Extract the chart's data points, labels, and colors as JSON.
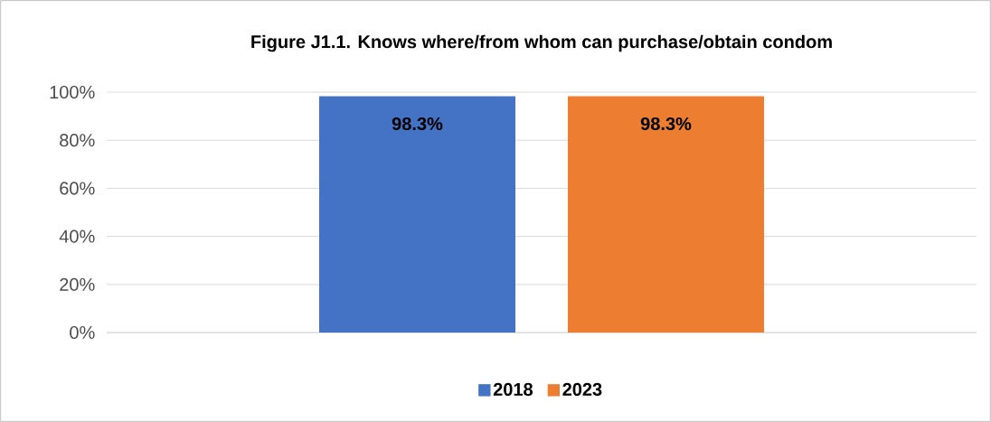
{
  "chart_data": {
    "type": "bar",
    "title": "Figure J1.1. Knows where/from whom can purchase/obtain condom",
    "categories": [
      null
    ],
    "series": [
      {
        "name": "2018",
        "color": "#4472c4",
        "values": [
          98.3
        ],
        "value_labels": [
          "98.3%"
        ]
      },
      {
        "name": "2023",
        "color": "#ed7d31",
        "values": [
          98.3
        ],
        "value_labels": [
          "98.3%"
        ]
      }
    ],
    "ylim": [
      0,
      100
    ],
    "yticks": [
      {
        "value": 0,
        "label": "0%"
      },
      {
        "value": 20,
        "label": "20%"
      },
      {
        "value": 40,
        "label": "40%"
      },
      {
        "value": 60,
        "label": "60%"
      },
      {
        "value": 80,
        "label": "80%"
      },
      {
        "value": 100,
        "label": "100%"
      }
    ],
    "grid": "y",
    "legend": "bottom"
  }
}
